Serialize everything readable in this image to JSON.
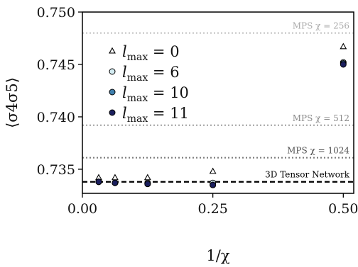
{
  "chart_data": {
    "type": "scatter",
    "xlabel": "1/χ",
    "ylabel": "⟨σ4σ5⟩",
    "xlim": [
      0.0,
      0.52
    ],
    "ylim": [
      0.7327,
      0.75
    ],
    "x_ticks": [
      0.0,
      0.25,
      0.5
    ],
    "x_tick_labels": [
      "0.00",
      "0.25",
      "0.50"
    ],
    "y_ticks": [
      0.735,
      0.74,
      0.745,
      0.75
    ],
    "y_tick_labels": [
      "0.735",
      "0.740",
      "0.745",
      "0.750"
    ],
    "grid": false,
    "legend_position": "upper-left",
    "series": [
      {
        "name": "l_max = 0",
        "marker": "triangle",
        "color": "#ffffff",
        "points": [
          [
            0.03125,
            0.7342
          ],
          [
            0.0625,
            0.7342
          ],
          [
            0.125,
            0.7342
          ],
          [
            0.25,
            0.7348
          ],
          [
            0.5,
            0.7467
          ]
        ]
      },
      {
        "name": "l_max = 6",
        "marker": "circle",
        "color": "#d4ecf2",
        "points": [
          [
            0.03125,
            0.7338
          ],
          [
            0.0625,
            0.7337
          ],
          [
            0.125,
            0.7337
          ],
          [
            0.25,
            0.7337
          ],
          [
            0.5,
            0.7452
          ]
        ]
      },
      {
        "name": "l_max = 10",
        "marker": "circle",
        "color": "#3f7fad",
        "points": [
          [
            0.03125,
            0.7338
          ],
          [
            0.0625,
            0.7337
          ],
          [
            0.125,
            0.7336
          ],
          [
            0.25,
            0.7335
          ],
          [
            0.5,
            0.7451
          ]
        ]
      },
      {
        "name": "l_max = 11",
        "marker": "circle",
        "color": "#1b1f5e",
        "points": [
          [
            0.03125,
            0.7338
          ],
          [
            0.0625,
            0.7337
          ],
          [
            0.125,
            0.7336
          ],
          [
            0.25,
            0.7335
          ],
          [
            0.5,
            0.745
          ]
        ]
      }
    ],
    "reference_lines": [
      {
        "label": "MPS χ = 256",
        "y": 0.748,
        "style": "dotted",
        "color": "#c8c8c8",
        "label_color": "#aaaaaa"
      },
      {
        "label": "MPS χ = 512",
        "y": 0.7392,
        "style": "dotted",
        "color": "#a8a8a8",
        "label_color": "#8a8a8a"
      },
      {
        "label": "MPS χ = 1024",
        "y": 0.7361,
        "style": "dotted",
        "color": "#7f7f7f",
        "label_color": "#555555"
      },
      {
        "label": "3D Tensor Network",
        "y": 0.7338,
        "style": "dashed",
        "color": "#000000",
        "label_color": "#000000"
      }
    ]
  }
}
